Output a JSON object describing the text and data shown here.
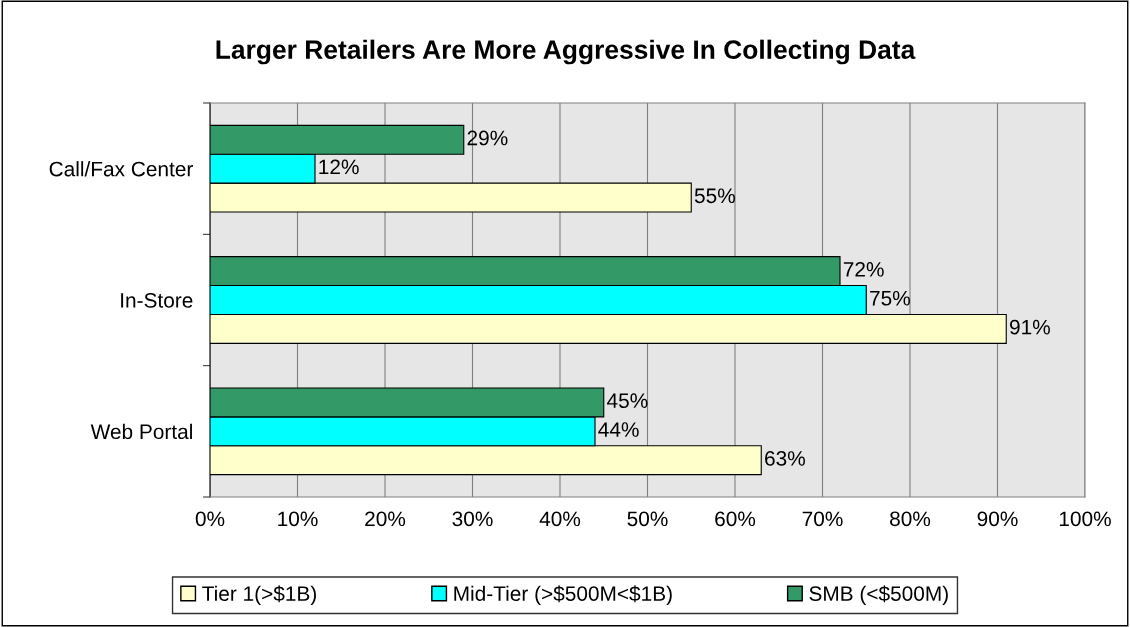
{
  "chart_data": {
    "type": "bar",
    "title": "Larger Retailers Are More Aggressive In Collecting Data",
    "orientation": "horizontal",
    "categories": [
      "Call/Fax Center",
      "In-Store",
      "Web Portal"
    ],
    "series": [
      {
        "name": "Tier 1(>$1B)",
        "color": "#ffffcc",
        "values": [
          55,
          91,
          63
        ],
        "value_labels": [
          "55%",
          "91%",
          "63%"
        ]
      },
      {
        "name": "Mid-Tier (>$500M<$1B)",
        "color": "#00ffff",
        "values": [
          12,
          75,
          44
        ],
        "value_labels": [
          "12%",
          "75%",
          "44%"
        ]
      },
      {
        "name": "SMB (<$500M)",
        "color": "#339966",
        "values": [
          29,
          72,
          45
        ],
        "value_labels": [
          "29%",
          "72%",
          "45%"
        ]
      }
    ],
    "xlim": [
      0,
      100
    ],
    "xticks": [
      {
        "value": 0,
        "label": "0%"
      },
      {
        "value": 10,
        "label": "10%"
      },
      {
        "value": 20,
        "label": "20%"
      },
      {
        "value": 30,
        "label": "30%"
      },
      {
        "value": 40,
        "label": "40%"
      },
      {
        "value": 50,
        "label": "50%"
      },
      {
        "value": 60,
        "label": "60%"
      },
      {
        "value": 70,
        "label": "70%"
      },
      {
        "value": 80,
        "label": "80%"
      },
      {
        "value": 90,
        "label": "90%"
      },
      {
        "value": 100,
        "label": "100%"
      }
    ],
    "grid": "x",
    "legend": "bottom"
  }
}
